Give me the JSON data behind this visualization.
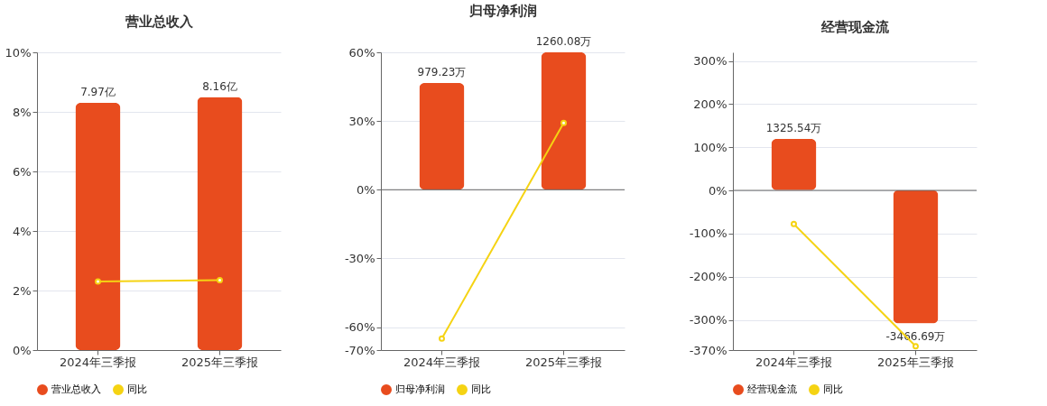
{
  "chart_data": [
    {
      "type": "bar",
      "title": "营业总收入",
      "categories": [
        "2024年三季报",
        "2025年三季报"
      ],
      "series": [
        {
          "name": "营业总收入",
          "type": "bar",
          "axis": "y2",
          "color": "#e84c1e",
          "values": [
            7.97,
            8.16
          ],
          "value_labels": [
            "7.97亿",
            "8.16亿"
          ]
        },
        {
          "name": "同比",
          "type": "line",
          "color": "#f5d313",
          "values": [
            2.3,
            2.35
          ]
        }
      ],
      "ylim": [
        0,
        10
      ],
      "yticks": [
        {
          "value": 0,
          "label": "0%"
        },
        {
          "value": 2,
          "label": "2%"
        },
        {
          "value": 4,
          "label": "4%"
        },
        {
          "value": 6,
          "label": "6%"
        },
        {
          "value": 8,
          "label": "8%"
        },
        {
          "value": 10,
          "label": "10%"
        }
      ],
      "y2lim": [
        0,
        9.6
      ],
      "tick_labels": "xy",
      "grid": "y",
      "legend": "bottom",
      "marker": "circle"
    },
    {
      "type": "bar",
      "title": "归母净利润",
      "categories": [
        "2024年三季报",
        "2025年三季报"
      ],
      "series": [
        {
          "name": "归母净利润",
          "type": "bar",
          "axis": "y2",
          "color": "#e84c1e",
          "values": [
            979.23,
            1260.08
          ],
          "value_labels": [
            "979.23万",
            "1260.08万"
          ]
        },
        {
          "name": "同比",
          "type": "line",
          "color": "#f5d313",
          "values": [
            -65,
            29.2
          ]
        }
      ],
      "ylim": [
        -70,
        60
      ],
      "yticks": [
        {
          "value": -70,
          "label": "-70%"
        },
        {
          "value": -60,
          "label": "-60%"
        },
        {
          "value": -30,
          "label": "-30%"
        },
        {
          "value": 0,
          "label": "0%"
        },
        {
          "value": 30,
          "label": "30%"
        },
        {
          "value": 60,
          "label": "60%"
        }
      ],
      "y2lim": [
        -1470,
        1260.08
      ],
      "tick_labels": "xy",
      "grid": "y",
      "legend": "bottom",
      "marker": "circle",
      "ref_lines": [
        {
          "axis": "y",
          "value": 0,
          "color": "#666666"
        }
      ]
    },
    {
      "type": "bar",
      "title": "经营现金流",
      "categories": [
        "2024年三季报",
        "2025年三季报"
      ],
      "series": [
        {
          "name": "经营现金流",
          "type": "bar",
          "axis": "y2",
          "color": "#e84c1e",
          "values": [
            1325.54,
            -3466.69
          ],
          "value_labels": [
            "1325.54万",
            "-3466.69万"
          ]
        },
        {
          "name": "同比",
          "type": "line",
          "color": "#f5d313",
          "values": [
            -78,
            -361
          ]
        }
      ],
      "ylim": [
        -370,
        320
      ],
      "yticks": [
        {
          "value": -370,
          "label": "-370%"
        },
        {
          "value": -300,
          "label": "-300%"
        },
        {
          "value": -200,
          "label": "-200%"
        },
        {
          "value": -100,
          "label": "-100%"
        },
        {
          "value": 0,
          "label": "0%"
        },
        {
          "value": 100,
          "label": "100%"
        },
        {
          "value": 200,
          "label": "200%"
        },
        {
          "value": 300,
          "label": "300%"
        }
      ],
      "y2lim": [
        -4160,
        3580
      ],
      "tick_labels": "xy",
      "grid": "y",
      "legend": "bottom",
      "marker": "circle",
      "ref_lines": [
        {
          "axis": "y",
          "value": 0,
          "color": "#666666"
        }
      ]
    }
  ]
}
